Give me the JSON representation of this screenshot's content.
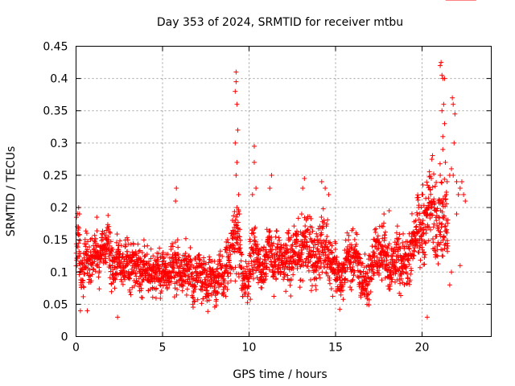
{
  "chart_data": {
    "type": "scatter",
    "title": "Day 353 of 2024, SRMTID for receiver mtbu",
    "xlabel": "GPS time / hours",
    "ylabel": "SRMTID / TECUs",
    "xlim": [
      0,
      24
    ],
    "ylim": [
      0,
      0.45
    ],
    "xticks": [
      0,
      5,
      10,
      15,
      20
    ],
    "xtick_labels": [
      "0",
      "5",
      "10",
      "15",
      "20"
    ],
    "yticks": [
      0,
      0.05,
      0.1,
      0.15,
      0.2,
      0.25,
      0.3,
      0.35,
      0.4,
      0.45
    ],
    "ytick_labels": [
      "0",
      "0.05",
      "0.1",
      "0.15",
      "0.2",
      "0.25",
      "0.3",
      "0.35",
      "0.4",
      "0.45"
    ],
    "grid": true,
    "marker": "+",
    "color": "#ff0000",
    "series": [
      {
        "name": "SRMTID",
        "x": [
          0.0,
          0.1,
          0.2,
          0.3,
          0.4,
          0.5,
          0.6,
          0.7,
          0.8,
          0.9,
          1.0,
          1.1,
          1.2,
          1.3,
          1.4,
          1.5,
          1.6,
          1.7,
          1.8,
          1.9,
          2.0,
          2.1,
          2.2,
          2.3,
          2.4,
          2.5,
          2.6,
          2.7,
          2.8,
          2.9,
          3.0,
          3.1,
          3.2,
          3.3,
          3.4,
          3.5,
          3.6,
          3.7,
          3.8,
          3.9,
          4.0,
          4.1,
          4.2,
          4.3,
          4.4,
          4.5,
          4.6,
          4.7,
          4.8,
          4.9,
          5.0,
          5.1,
          5.2,
          5.3,
          5.4,
          5.5,
          5.6,
          5.7,
          5.8,
          5.9,
          6.0,
          6.1,
          6.2,
          6.3,
          6.4,
          6.5,
          6.6,
          6.7,
          6.8,
          6.9,
          7.0,
          7.1,
          7.2,
          7.3,
          7.4,
          7.5,
          7.6,
          7.7,
          7.8,
          7.9,
          8.0,
          8.1,
          8.2,
          8.3,
          8.4,
          8.5,
          8.6,
          8.7,
          8.8,
          8.9,
          9.0,
          9.1,
          9.2,
          9.3,
          9.4,
          9.5,
          9.6,
          9.7,
          9.8,
          9.9,
          10.0,
          10.1,
          10.2,
          10.3,
          10.4,
          10.5,
          10.6,
          10.7,
          10.8,
          10.9,
          11.0,
          11.1,
          11.2,
          11.3,
          11.4,
          11.5,
          11.6,
          11.7,
          11.8,
          11.9,
          12.0,
          12.1,
          12.2,
          12.3,
          12.4,
          12.5,
          12.6,
          12.7,
          12.8,
          12.9,
          13.0,
          13.1,
          13.2,
          13.3,
          13.4,
          13.5,
          13.6,
          13.7,
          13.8,
          13.9,
          14.0,
          14.1,
          14.2,
          14.3,
          14.4,
          14.5,
          14.6,
          14.7,
          14.8,
          14.9,
          15.0,
          15.1,
          15.2,
          15.3,
          15.4,
          15.5,
          15.6,
          15.7,
          15.8,
          15.9,
          16.0,
          16.1,
          16.2,
          16.3,
          16.4,
          16.5,
          16.6,
          16.7,
          16.8,
          16.9,
          17.0,
          17.1,
          17.2,
          17.3,
          17.4,
          17.5,
          17.6,
          17.7,
          17.8,
          17.9,
          18.0,
          18.1,
          18.2,
          18.3,
          18.4,
          18.5,
          18.6,
          18.7,
          18.8,
          18.9,
          19.0,
          19.1,
          19.2,
          19.3,
          19.4,
          19.5,
          19.6,
          19.7,
          19.8,
          19.9,
          20.0,
          20.1,
          20.2,
          20.3,
          20.4,
          20.5,
          20.6,
          20.7,
          20.8,
          20.9,
          21.0,
          21.1,
          21.2,
          21.3,
          21.4,
          21.5,
          21.6,
          21.7,
          21.8,
          21.9,
          22.0,
          22.1,
          22.2,
          22.3,
          22.4,
          22.5,
          22.6,
          22.7,
          22.8,
          22.9,
          23.0
        ],
        "center": [
          0.13,
          0.15,
          0.12,
          0.09,
          0.1,
          0.12,
          0.13,
          0.12,
          0.11,
          0.12,
          0.13,
          0.14,
          0.12,
          0.11,
          0.13,
          0.15,
          0.14,
          0.13,
          0.15,
          0.14,
          0.12,
          0.1,
          0.11,
          0.12,
          0.13,
          0.12,
          0.11,
          0.1,
          0.11,
          0.12,
          0.11,
          0.1,
          0.11,
          0.12,
          0.11,
          0.1,
          0.11,
          0.1,
          0.1,
          0.11,
          0.12,
          0.11,
          0.1,
          0.11,
          0.1,
          0.09,
          0.1,
          0.11,
          0.1,
          0.09,
          0.1,
          0.11,
          0.1,
          0.09,
          0.1,
          0.11,
          0.12,
          0.11,
          0.1,
          0.11,
          0.1,
          0.09,
          0.1,
          0.11,
          0.1,
          0.09,
          0.1,
          0.09,
          0.08,
          0.09,
          0.1,
          0.11,
          0.1,
          0.09,
          0.1,
          0.09,
          0.08,
          0.09,
          0.1,
          0.09,
          0.09,
          0.08,
          0.09,
          0.1,
          0.09,
          0.08,
          0.1,
          0.12,
          0.11,
          0.12,
          0.13,
          0.15,
          0.14,
          0.15,
          0.14,
          0.12,
          0.1,
          0.09,
          0.08,
          0.09,
          0.1,
          0.12,
          0.13,
          0.14,
          0.13,
          0.12,
          0.11,
          0.1,
          0.11,
          0.12,
          0.13,
          0.14,
          0.13,
          0.12,
          0.11,
          0.12,
          0.13,
          0.12,
          0.11,
          0.12,
          0.11,
          0.12,
          0.13,
          0.12,
          0.11,
          0.12,
          0.13,
          0.14,
          0.13,
          0.12,
          0.13,
          0.14,
          0.15,
          0.16,
          0.15,
          0.14,
          0.13,
          0.12,
          0.11,
          0.12,
          0.13,
          0.14,
          0.15,
          0.14,
          0.13,
          0.14,
          0.13,
          0.12,
          0.11,
          0.12,
          0.11,
          0.1,
          0.09,
          0.08,
          0.09,
          0.1,
          0.12,
          0.13,
          0.12,
          0.11,
          0.12,
          0.13,
          0.12,
          0.11,
          0.1,
          0.09,
          0.08,
          0.09,
          0.08,
          0.09,
          0.1,
          0.11,
          0.12,
          0.13,
          0.14,
          0.13,
          0.12,
          0.13,
          0.14,
          0.13,
          0.12,
          0.11,
          0.1,
          0.11,
          0.12,
          0.13,
          0.12,
          0.11,
          0.1,
          0.11,
          0.12,
          0.11,
          0.12,
          0.13,
          0.14,
          0.15,
          0.16,
          0.17,
          0.16,
          0.15,
          0.16,
          0.17,
          0.18,
          0.19,
          0.2,
          0.21,
          0.2,
          0.19,
          0.18,
          0.19,
          0.2,
          0.19,
          0.18,
          0.17,
          0.18,
          0.17
        ],
        "spread": [
          0.035,
          0.04,
          0.035,
          0.03,
          0.03,
          0.03,
          0.03,
          0.03,
          0.03,
          0.03,
          0.03,
          0.03,
          0.03,
          0.03,
          0.03,
          0.03,
          0.03,
          0.03,
          0.03,
          0.03,
          0.03,
          0.03,
          0.03,
          0.03,
          0.03,
          0.03,
          0.03,
          0.03,
          0.03,
          0.03,
          0.03,
          0.03,
          0.03,
          0.03,
          0.03,
          0.03,
          0.03,
          0.03,
          0.03,
          0.03,
          0.03,
          0.03,
          0.03,
          0.03,
          0.03,
          0.03,
          0.03,
          0.03,
          0.03,
          0.03,
          0.03,
          0.03,
          0.03,
          0.03,
          0.03,
          0.03,
          0.035,
          0.035,
          0.035,
          0.03,
          0.03,
          0.03,
          0.03,
          0.03,
          0.03,
          0.03,
          0.03,
          0.03,
          0.03,
          0.03,
          0.03,
          0.03,
          0.03,
          0.03,
          0.03,
          0.03,
          0.03,
          0.03,
          0.03,
          0.03,
          0.03,
          0.03,
          0.03,
          0.03,
          0.03,
          0.03,
          0.035,
          0.04,
          0.04,
          0.04,
          0.045,
          0.05,
          0.05,
          0.05,
          0.05,
          0.045,
          0.04,
          0.035,
          0.03,
          0.03,
          0.035,
          0.04,
          0.04,
          0.04,
          0.035,
          0.035,
          0.035,
          0.035,
          0.035,
          0.035,
          0.035,
          0.035,
          0.035,
          0.035,
          0.035,
          0.035,
          0.035,
          0.035,
          0.035,
          0.035,
          0.035,
          0.035,
          0.035,
          0.035,
          0.035,
          0.035,
          0.035,
          0.04,
          0.04,
          0.04,
          0.04,
          0.04,
          0.04,
          0.045,
          0.04,
          0.04,
          0.04,
          0.035,
          0.035,
          0.035,
          0.035,
          0.04,
          0.04,
          0.04,
          0.04,
          0.04,
          0.035,
          0.035,
          0.035,
          0.035,
          0.035,
          0.035,
          0.03,
          0.03,
          0.03,
          0.03,
          0.03,
          0.035,
          0.035,
          0.035,
          0.035,
          0.035,
          0.035,
          0.035,
          0.035,
          0.03,
          0.03,
          0.03,
          0.03,
          0.03,
          0.03,
          0.03,
          0.035,
          0.035,
          0.035,
          0.035,
          0.035,
          0.035,
          0.035,
          0.035,
          0.035,
          0.035,
          0.035,
          0.035,
          0.035,
          0.035,
          0.035,
          0.035,
          0.035,
          0.035,
          0.035,
          0.035,
          0.035,
          0.035,
          0.035,
          0.04,
          0.04,
          0.04,
          0.045,
          0.045,
          0.045,
          0.045,
          0.05,
          0.05,
          0.05,
          0.055,
          0.06,
          0.06,
          0.06,
          0.06,
          0.055,
          0.055,
          0.05,
          0.05,
          0.045,
          0.04,
          0.04,
          0.035,
          0.035
        ],
        "outliers": [
          [
            0.15,
            0.2
          ],
          [
            0.2,
            0.19
          ],
          [
            0.25,
            0.04
          ],
          [
            0.65,
            0.04
          ],
          [
            1.2,
            0.185
          ],
          [
            2.4,
            0.03
          ],
          [
            5.8,
            0.23
          ],
          [
            5.75,
            0.21
          ],
          [
            9.25,
            0.41
          ],
          [
            9.25,
            0.395
          ],
          [
            9.2,
            0.38
          ],
          [
            9.3,
            0.36
          ],
          [
            9.35,
            0.32
          ],
          [
            9.2,
            0.3
          ],
          [
            9.3,
            0.27
          ],
          [
            9.25,
            0.25
          ],
          [
            9.4,
            0.22
          ],
          [
            9.3,
            0.2
          ],
          [
            9.45,
            0.19
          ],
          [
            10.3,
            0.295
          ],
          [
            10.3,
            0.27
          ],
          [
            10.4,
            0.23
          ],
          [
            10.2,
            0.22
          ],
          [
            11.3,
            0.25
          ],
          [
            11.2,
            0.23
          ],
          [
            13.2,
            0.245
          ],
          [
            13.1,
            0.23
          ],
          [
            14.2,
            0.24
          ],
          [
            14.4,
            0.23
          ],
          [
            14.6,
            0.22
          ],
          [
            17.8,
            0.19
          ],
          [
            18.1,
            0.195
          ],
          [
            20.0,
            0.22
          ],
          [
            20.05,
            0.235
          ],
          [
            20.3,
            0.03
          ],
          [
            21.05,
            0.42
          ],
          [
            21.1,
            0.425
          ],
          [
            21.15,
            0.405
          ],
          [
            21.2,
            0.4
          ],
          [
            21.3,
            0.4
          ],
          [
            21.25,
            0.36
          ],
          [
            21.15,
            0.35
          ],
          [
            21.3,
            0.33
          ],
          [
            21.2,
            0.31
          ],
          [
            21.2,
            0.29
          ],
          [
            21.35,
            0.27
          ],
          [
            21.05,
            0.25
          ],
          [
            21.45,
            0.24
          ],
          [
            21.4,
            0.22
          ],
          [
            21.6,
            0.25
          ],
          [
            21.7,
            0.26
          ],
          [
            21.8,
            0.25
          ],
          [
            21.75,
            0.37
          ],
          [
            21.8,
            0.36
          ],
          [
            21.9,
            0.345
          ],
          [
            21.85,
            0.3
          ],
          [
            22.0,
            0.24
          ],
          [
            22.1,
            0.22
          ],
          [
            22.2,
            0.23
          ],
          [
            22.3,
            0.24
          ],
          [
            22.4,
            0.22
          ],
          [
            22.5,
            0.21
          ],
          [
            22.0,
            0.19
          ],
          [
            21.6,
            0.08
          ],
          [
            21.7,
            0.1
          ],
          [
            22.2,
            0.11
          ]
        ]
      }
    ]
  }
}
